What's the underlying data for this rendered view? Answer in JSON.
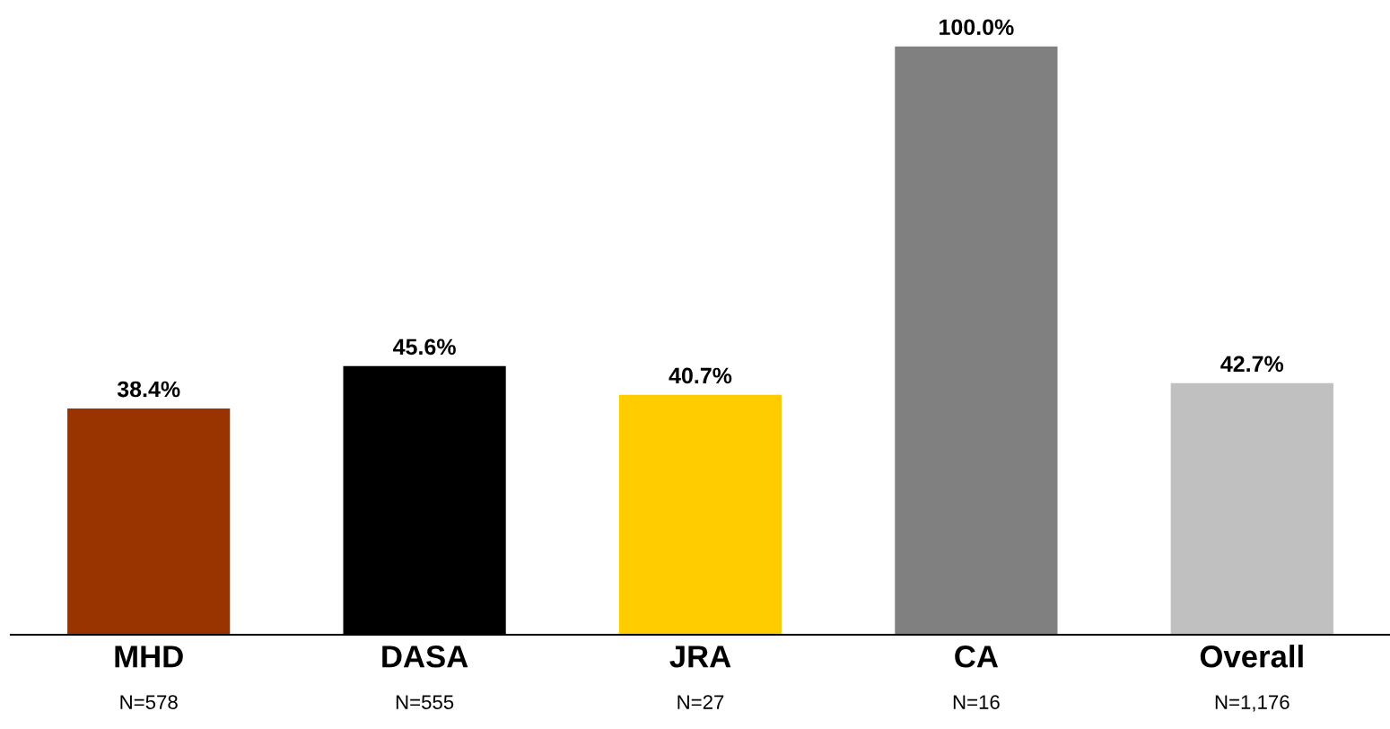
{
  "chart_data": {
    "type": "bar",
    "categories": [
      "MHD",
      "DASA",
      "JRA",
      "CA",
      "Overall"
    ],
    "values": [
      38.4,
      45.6,
      40.7,
      100.0,
      42.7
    ],
    "value_labels": [
      "38.4%",
      "45.6%",
      "40.7%",
      "100.0%",
      "42.7%"
    ],
    "colors": [
      "#993300",
      "#000000",
      "#ffcc00",
      "#808080",
      "#c0c0c0"
    ],
    "annotations": [
      "N=578",
      "N=555",
      "N=27",
      "N=16",
      "N=1,176"
    ],
    "grid": false,
    "legend": false
  }
}
